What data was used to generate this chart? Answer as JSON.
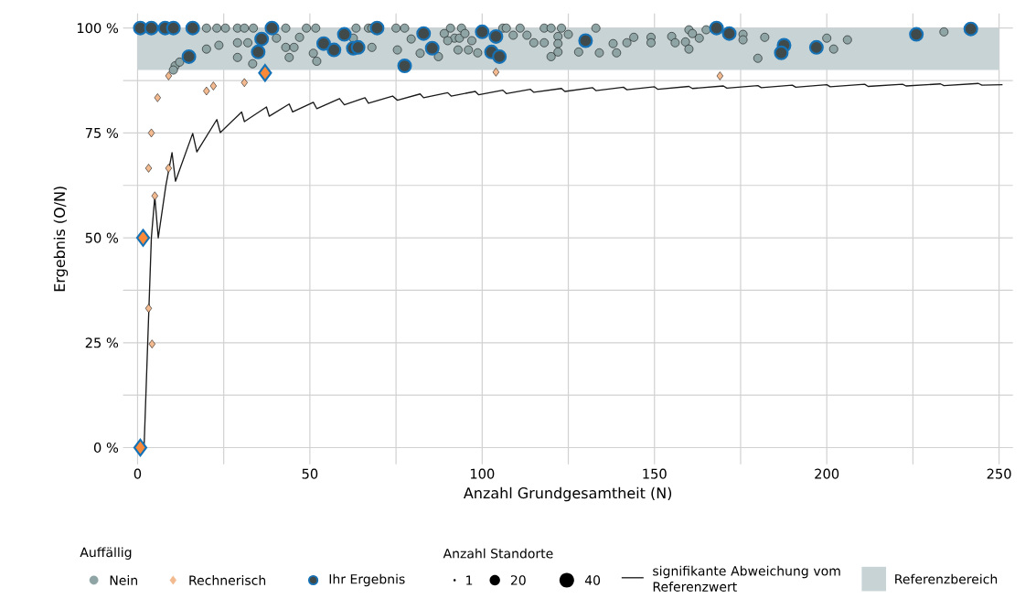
{
  "chart_data": {
    "type": "bubble",
    "xlabel": "Anzahl Grundgesamtheit (N)",
    "ylabel": "Ergebnis (O/N)",
    "legend_title": "Auffällig",
    "annotations": [
      "Anzahl Standorte"
    ],
    "xlim": [
      -4.2,
      254
    ],
    "ylim": [
      -4,
      103.5
    ],
    "xticks": [
      0,
      {
        "value": 25,
        "label": null
      },
      50,
      {
        "value": 75,
        "label": null
      },
      100,
      {
        "value": 125,
        "label": null
      },
      150,
      {
        "value": 175,
        "label": null
      },
      200,
      {
        "value": 225,
        "label": null
      },
      250
    ],
    "yticks": [
      {
        "value": 0,
        "label": "0 %"
      },
      {
        "value": 12.5,
        "label": null
      },
      {
        "value": 25,
        "label": "25 %"
      },
      {
        "value": 37.5,
        "label": null
      },
      {
        "value": 50,
        "label": "50 %"
      },
      {
        "value": 62.5,
        "label": null
      },
      {
        "value": 75,
        "label": "75 %"
      },
      {
        "value": 87.5,
        "label": null
      },
      {
        "value": 100,
        "label": "100 %"
      }
    ],
    "grid": true,
    "legend": "bottom",
    "size_legend": [
      1,
      20,
      40
    ],
    "bands": [
      {
        "axis": "y",
        "from": 90,
        "to": 100,
        "label": "Referenzbereich",
        "color": "#c8d3d5"
      }
    ],
    "series": [
      {
        "name": "Nein",
        "type": "scatter",
        "marker": "circle",
        "color": "#8fa5a5",
        "x": [
          20,
          23,
          25.5,
          29,
          31,
          33.6,
          43,
          49,
          51.7,
          63.4,
          67,
          68,
          75,
          77.5,
          23.6,
          20,
          29,
          32,
          29,
          33.4,
          40.3,
          43,
          45.4,
          47,
          44,
          51,
          52,
          62.6,
          68,
          75.4,
          79.4,
          82,
          10.9,
          10.4,
          12.2,
          90.8,
          94,
          106,
          107,
          111,
          118,
          120,
          123,
          133,
          89,
          92,
          93.4,
          95,
          90,
          97,
          93,
          96,
          87.3,
          98.7,
          109,
          113,
          115,
          118,
          122,
          122,
          122,
          120,
          125,
          128,
          134,
          138,
          139,
          142,
          144,
          149,
          149,
          155,
          156,
          159,
          160,
          160,
          161,
          163,
          165,
          175.7,
          175.7,
          182,
          180,
          200,
          202,
          206,
          234
        ],
        "values": [
          100,
          100,
          100,
          100,
          100,
          100,
          100,
          100,
          100,
          100,
          100,
          100,
          100,
          100,
          95.9,
          95,
          96.5,
          96.5,
          93,
          91.5,
          97.6,
          95.4,
          95.4,
          97.8,
          93,
          94,
          92.1,
          97.6,
          95.4,
          94.8,
          97.4,
          94,
          91,
          90,
          91.9,
          100,
          100,
          100,
          100,
          100,
          100,
          100,
          100,
          100,
          98.7,
          97.6,
          97.6,
          98.7,
          97,
          97,
          94.8,
          94.8,
          93.2,
          94.1,
          98.3,
          98.3,
          96.5,
          96.5,
          98,
          96.3,
          94.3,
          93.2,
          98.5,
          94.3,
          94.1,
          96.3,
          94.1,
          96.5,
          97.8,
          97.8,
          96.5,
          98,
          96.5,
          96.7,
          95,
          99.6,
          98.7,
          97.6,
          99.6,
          98.5,
          97.2,
          97.8,
          92.8,
          97.6,
          95,
          97.2,
          99.1
        ],
        "sizes": [
          13,
          13,
          13,
          13,
          13,
          13,
          13,
          13,
          13,
          13,
          13,
          13,
          13,
          13,
          13,
          13,
          13,
          13,
          13,
          13,
          13,
          13,
          13,
          13,
          13,
          13,
          13,
          13,
          13,
          13,
          13,
          13,
          13,
          13,
          13,
          13,
          13,
          13,
          13,
          13,
          13,
          13,
          13,
          13,
          13,
          13,
          13,
          13,
          13,
          13,
          13,
          13,
          13,
          13,
          13,
          13,
          13,
          13,
          13,
          13,
          13,
          13,
          13,
          13,
          13,
          13,
          13,
          13,
          13,
          13,
          13,
          13,
          13,
          13,
          13,
          13,
          13,
          13,
          13,
          13,
          13,
          13,
          13,
          13,
          13,
          13,
          13
        ]
      },
      {
        "name": "Rechnerisch",
        "type": "scatter",
        "marker": "diamond",
        "color": "#f3b98f",
        "x": [
          5.8,
          4,
          3.2,
          9,
          5,
          3.2,
          4.2,
          20,
          22,
          31,
          9,
          104,
          169
        ],
        "values": [
          83.4,
          75,
          66.6,
          66.6,
          60,
          33.2,
          24.7,
          85,
          86.2,
          87,
          88.6,
          89.5,
          88.6
        ],
        "sizes": [
          8,
          8,
          8,
          8,
          8,
          8,
          8,
          8,
          8,
          8,
          8,
          8,
          8
        ]
      },
      {
        "name": "Ihr Ergebnis",
        "type": "scatter",
        "marker": "circle",
        "color": "#1672b6",
        "x": [
          0.8,
          4,
          8,
          10.4,
          16,
          39,
          36,
          35,
          14.9,
          54,
          57,
          60,
          62.6,
          64,
          69.5,
          77.5,
          83,
          85.5,
          100,
          104,
          102.7,
          105,
          130,
          168,
          171.7,
          187.6,
          186.8,
          197,
          226,
          241.8
        ],
        "values": [
          100,
          100,
          100,
          100,
          100,
          100,
          97.4,
          94.3,
          93.2,
          96.3,
          94.8,
          98.5,
          95.2,
          95.4,
          100,
          91,
          98.7,
          95.2,
          99.1,
          98,
          94.3,
          93.2,
          97,
          100,
          98.7,
          95.9,
          94.1,
          95.4,
          98.5,
          99.8
        ],
        "sizes": [
          30,
          30,
          30,
          30,
          30,
          30,
          30,
          30,
          30,
          30,
          30,
          30,
          30,
          30,
          30,
          30,
          30,
          30,
          30,
          30,
          30,
          30,
          30,
          30,
          30,
          30,
          30,
          30,
          30,
          30
        ]
      },
      {
        "type": "scatter",
        "marker": "diamond",
        "color": "#1672b6",
        "x": [
          0.8,
          1.6,
          37
        ],
        "values": [
          0,
          50,
          89.3
        ],
        "sizes": [
          30,
          30,
          30
        ]
      },
      {
        "name": "signifikante Abweichung vom Referenzwert",
        "type": "line",
        "marker": "none",
        "line_style": "solid",
        "color": "#1a1a1a",
        "x": [
          1.9,
          4,
          5,
          6,
          8.2,
          10,
          11,
          16,
          17.2,
          23,
          24,
          30.2,
          31,
          37.4,
          38.2,
          44,
          45,
          51,
          52,
          58.6,
          60,
          66,
          67,
          74,
          75.4,
          82,
          83,
          90,
          91,
          98,
          99,
          106,
          107,
          114,
          115,
          123,
          124,
          132,
          133,
          141,
          142,
          150,
          151,
          160,
          161,
          170,
          171,
          180,
          181,
          190,
          191,
          200,
          201,
          211,
          212,
          222,
          223,
          233,
          234,
          244,
          245,
          251
        ],
        "values": [
          0.4,
          50,
          59.8,
          50,
          62.4,
          70.3,
          63.5,
          74.9,
          70.5,
          78.2,
          75.1,
          80,
          77.7,
          81.2,
          79,
          81.9,
          80,
          82.3,
          80.8,
          83.2,
          81.7,
          83.4,
          82.1,
          83.8,
          82.8,
          84.3,
          83.4,
          84.6,
          83.8,
          84.9,
          84.1,
          85.2,
          84.4,
          85.4,
          84.7,
          85.6,
          84.9,
          85.8,
          85.1,
          85.9,
          85.3,
          86.0,
          85.4,
          86.1,
          85.6,
          86.2,
          85.7,
          86.3,
          85.8,
          86.4,
          85.9,
          86.5,
          86.0,
          86.6,
          86.1,
          86.6,
          86.2,
          86.7,
          86.3,
          86.8,
          86.4,
          86.5
        ]
      }
    ]
  }
}
